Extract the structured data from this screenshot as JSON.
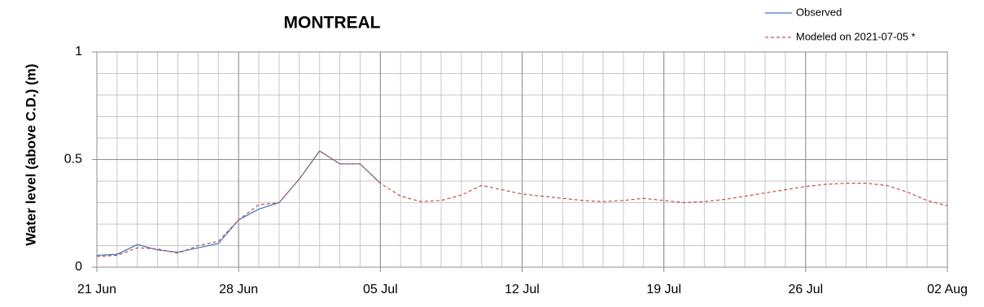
{
  "chart_data": {
    "type": "line",
    "title": "MONTREAL",
    "y_label": "Water level (above C.D.) (m)",
    "x": [
      "21 Jun",
      "22 Jun",
      "23 Jun",
      "24 Jun",
      "25 Jun",
      "26 Jun",
      "27 Jun",
      "28 Jun",
      "29 Jun",
      "30 Jun",
      "01 Jul",
      "02 Jul",
      "03 Jul",
      "04 Jul",
      "05 Jul",
      "06 Jul",
      "07 Jul",
      "08 Jul",
      "09 Jul",
      "10 Jul",
      "11 Jul",
      "12 Jul",
      "13 Jul",
      "14 Jul",
      "15 Jul",
      "16 Jul",
      "17 Jul",
      "18 Jul",
      "19 Jul",
      "20 Jul",
      "21 Jul",
      "22 Jul",
      "23 Jul",
      "24 Jul",
      "25 Jul",
      "26 Jul",
      "27 Jul",
      "28 Jul",
      "29 Jul",
      "30 Jul",
      "31 Jul",
      "01 Aug",
      "02 Aug"
    ],
    "xticks": [
      "21 Jun",
      "28 Jun",
      "05 Jul",
      "12 Jul",
      "19 Jul",
      "26 Jul",
      "02 Aug"
    ],
    "ylim": [
      0,
      1
    ],
    "yticks": [
      0,
      0.5,
      1
    ],
    "ygrid": [
      0.1,
      0.2,
      0.3,
      0.4,
      0.6,
      0.7,
      0.8,
      0.9
    ],
    "xgrid": true,
    "legend": "top-right",
    "series": [
      {
        "name": "Observed",
        "color": "#4472c4",
        "dashed": false,
        "values": [
          0.055,
          0.06,
          0.105,
          0.08,
          0.07,
          0.09,
          0.11,
          0.22,
          0.27,
          0.3,
          0.41,
          0.54,
          0.48,
          0.48,
          0.39,
          null,
          null,
          null,
          null,
          null,
          null,
          null,
          null,
          null,
          null,
          null,
          null,
          null,
          null,
          null,
          null,
          null,
          null,
          null,
          null,
          null,
          null,
          null,
          null,
          null,
          null,
          null,
          null
        ]
      },
      {
        "name": "Modeled on 2021-07-05 *",
        "color": "#c0504d",
        "dashed": true,
        "values": [
          0.05,
          0.055,
          0.09,
          0.085,
          0.065,
          0.1,
          0.12,
          0.22,
          0.29,
          0.3,
          0.41,
          0.54,
          0.48,
          0.48,
          0.39,
          0.33,
          0.305,
          0.31,
          0.335,
          0.38,
          0.36,
          0.34,
          0.33,
          0.32,
          0.31,
          0.305,
          0.31,
          0.32,
          0.31,
          0.3,
          0.305,
          0.315,
          0.33,
          0.345,
          0.36,
          0.375,
          0.385,
          0.39,
          0.39,
          0.38,
          0.35,
          0.31,
          0.285
        ]
      }
    ]
  }
}
